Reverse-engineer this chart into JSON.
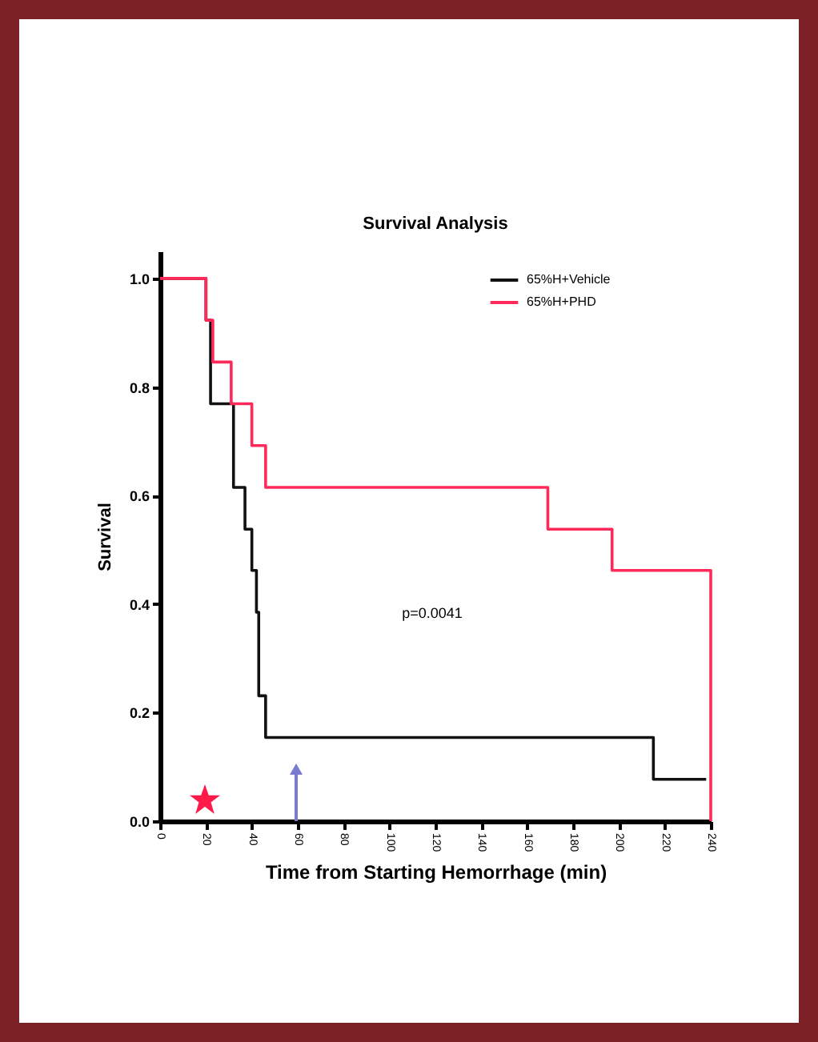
{
  "chart_data": {
    "type": "step",
    "title": "Survival Analysis",
    "xlabel": "Time from Starting Hemorrhage (min)",
    "ylabel": "Survival",
    "series": [
      {
        "name": "65%H+Vehicle",
        "color": "#111111",
        "x": [
          0,
          20,
          22,
          32,
          37,
          40,
          42,
          43,
          46,
          215,
          238
        ],
        "values": [
          1,
          0.923,
          0.769,
          0.615,
          0.538,
          0.462,
          0.385,
          0.231,
          0.154,
          0.077,
          0.077
        ]
      },
      {
        "name": "65%H+PHD",
        "color": "#ff2a5a",
        "x": [
          0,
          20,
          23,
          31,
          40,
          46,
          169,
          197,
          240
        ],
        "values": [
          1,
          0.923,
          0.846,
          0.769,
          0.692,
          0.615,
          0.538,
          0.462,
          0
        ]
      }
    ],
    "annotations": [
      "p=0.0041"
    ],
    "xlim": [
      0,
      240
    ],
    "xticks": [
      0,
      20,
      40,
      60,
      80,
      100,
      120,
      140,
      160,
      180,
      200,
      220,
      240
    ],
    "ylim": [
      0,
      1.05
    ],
    "yticks": [
      {
        "value": 0,
        "label": "0.0"
      },
      0.2,
      0.4,
      0.6,
      0.8,
      {
        "value": 1,
        "label": "1.0"
      }
    ],
    "legend": "top right",
    "grid": false
  }
}
